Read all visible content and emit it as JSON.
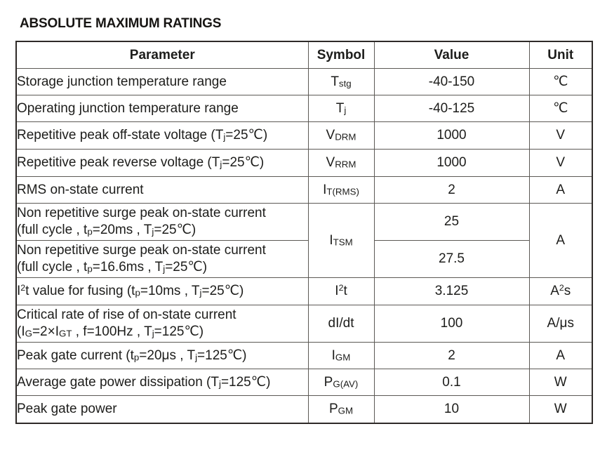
{
  "page": {
    "title": "ABSOLUTE MAXIMUM RATINGS"
  },
  "table": {
    "headers": {
      "parameter": "Parameter",
      "symbol": "Symbol",
      "value": "Value",
      "unit": "Unit"
    },
    "rows": [
      {
        "param": [
          {
            "t": "Storage junction temperature range"
          }
        ],
        "symbol": [
          {
            "t": "T"
          },
          {
            "t": "stg",
            "s": "sub"
          }
        ],
        "value": "-40-150",
        "unit": [
          {
            "t": "℃"
          }
        ]
      },
      {
        "param": [
          {
            "t": "Operating junction temperature range"
          }
        ],
        "symbol": [
          {
            "t": "T"
          },
          {
            "t": "j",
            "s": "sub"
          }
        ],
        "value": "-40-125",
        "unit": [
          {
            "t": "℃"
          }
        ]
      },
      {
        "param": [
          {
            "t": "Repetitive peak off-state voltage (T"
          },
          {
            "t": "j",
            "s": "sub"
          },
          {
            "t": "=25℃)"
          }
        ],
        "symbol": [
          {
            "t": "V"
          },
          {
            "t": "DRM",
            "s": "sub"
          }
        ],
        "value": "1000",
        "unit": [
          {
            "t": "V"
          }
        ]
      },
      {
        "param": [
          {
            "t": "Repetitive peak reverse voltage (T"
          },
          {
            "t": "j",
            "s": "sub"
          },
          {
            "t": "=25℃)"
          }
        ],
        "symbol": [
          {
            "t": "V"
          },
          {
            "t": "RRM",
            "s": "sub"
          }
        ],
        "value": "1000",
        "unit": [
          {
            "t": "V"
          }
        ]
      },
      {
        "param": [
          {
            "t": "RMS on-state current"
          }
        ],
        "symbol": [
          {
            "t": "I"
          },
          {
            "t": "T(RMS)",
            "s": "sub"
          }
        ],
        "value": "2",
        "unit": [
          {
            "t": "A"
          }
        ]
      },
      {
        "param": [
          {
            "t": "Non repetitive surge peak on-state current"
          },
          {
            "br": true
          },
          {
            "t": "(full cycle , t"
          },
          {
            "t": "p",
            "s": "sub"
          },
          {
            "t": "=20ms , T"
          },
          {
            "t": "j",
            "s": "sub"
          },
          {
            "t": "=25℃)"
          }
        ],
        "symbol": [
          {
            "t": "I"
          },
          {
            "t": "TSM",
            "s": "sub"
          }
        ],
        "value": "25",
        "unit": [
          {
            "t": "A"
          }
        ]
      },
      {
        "param": [
          {
            "t": "Non repetitive surge peak on-state current"
          },
          {
            "br": true
          },
          {
            "t": "(full cycle , t"
          },
          {
            "t": "p",
            "s": "sub"
          },
          {
            "t": "=16.6ms , T"
          },
          {
            "t": "j",
            "s": "sub"
          },
          {
            "t": "=25℃)"
          }
        ],
        "value": "27.5"
      },
      {
        "param": [
          {
            "t": "I"
          },
          {
            "t": "2",
            "s": "sup"
          },
          {
            "t": "t value for fusing (t"
          },
          {
            "t": "p",
            "s": "sub"
          },
          {
            "t": "=10ms , T"
          },
          {
            "t": "j",
            "s": "sub"
          },
          {
            "t": "=25℃)"
          }
        ],
        "symbol": [
          {
            "t": "I"
          },
          {
            "t": "2",
            "s": "sup"
          },
          {
            "t": "t"
          }
        ],
        "value": "3.125",
        "unit": [
          {
            "t": "A"
          },
          {
            "t": "2",
            "s": "sup"
          },
          {
            "t": "s"
          }
        ]
      },
      {
        "param": [
          {
            "t": "Critical rate of rise of on-state current"
          },
          {
            "br": true
          },
          {
            "t": "(I"
          },
          {
            "t": "G",
            "s": "sub"
          },
          {
            "t": "=2×I"
          },
          {
            "t": "GT",
            "s": "sub"
          },
          {
            "t": " , f=100Hz , T"
          },
          {
            "t": "j",
            "s": "sub"
          },
          {
            "t": "=125℃)"
          }
        ],
        "symbol": [
          {
            "t": "dI/dt"
          }
        ],
        "value": "100",
        "unit": [
          {
            "t": "A/μs"
          }
        ]
      },
      {
        "param": [
          {
            "t": "Peak gate current (t"
          },
          {
            "t": "p",
            "s": "sub"
          },
          {
            "t": "=20μs , T"
          },
          {
            "t": "j",
            "s": "sub"
          },
          {
            "t": "=125℃)"
          }
        ],
        "symbol": [
          {
            "t": "I"
          },
          {
            "t": "GM",
            "s": "sub"
          }
        ],
        "value": "2",
        "unit": [
          {
            "t": "A"
          }
        ]
      },
      {
        "param": [
          {
            "t": "Average gate power dissipation (T"
          },
          {
            "t": "j",
            "s": "sub"
          },
          {
            "t": "=125℃)"
          }
        ],
        "symbol": [
          {
            "t": "P"
          },
          {
            "t": "G(AV)",
            "s": "sub"
          }
        ],
        "value": "0.1",
        "unit": [
          {
            "t": "W"
          }
        ]
      },
      {
        "param": [
          {
            "t": "Peak gate power"
          }
        ],
        "symbol": [
          {
            "t": "P"
          },
          {
            "t": "GM",
            "s": "sub"
          }
        ],
        "value": "10",
        "unit": [
          {
            "t": "W"
          }
        ]
      }
    ]
  }
}
